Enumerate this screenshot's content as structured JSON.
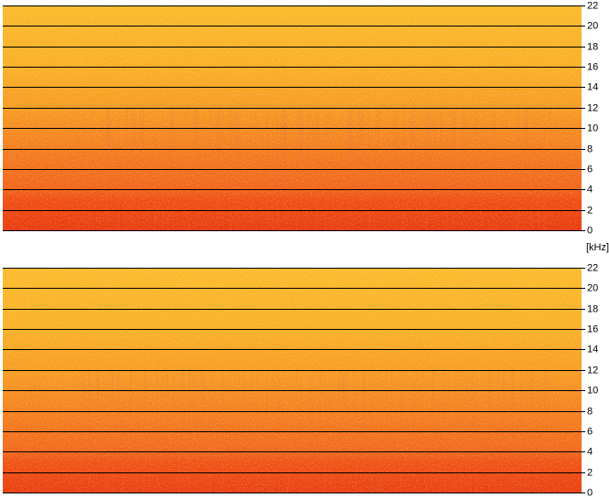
{
  "chart_data": [
    {
      "type": "spectrogram",
      "ylabel": "[kHz]",
      "ylim": [
        0,
        22
      ],
      "yticks": [
        0,
        2,
        4,
        6,
        8,
        10,
        12,
        14,
        16,
        18,
        20,
        22
      ],
      "grid": true,
      "color_stops": [
        {
          "value": 0,
          "color": "#e8380e"
        },
        {
          "value": 3,
          "color": "#f04c12"
        },
        {
          "value": 4,
          "color": "#f2621a"
        },
        {
          "value": 8,
          "color": "#f47c1e"
        },
        {
          "value": 12,
          "color": "#f79a22"
        },
        {
          "value": 16,
          "color": "#f9ae26"
        },
        {
          "value": 22,
          "color": "#fbb92a"
        }
      ]
    },
    {
      "type": "spectrogram",
      "ylim": [
        0,
        22
      ],
      "yticks": [
        0,
        2,
        4,
        6,
        8,
        10,
        12,
        14,
        16,
        18,
        20,
        22
      ],
      "grid": true,
      "color_stops": [
        {
          "value": 0,
          "color": "#ea3c0f"
        },
        {
          "value": 3,
          "color": "#f05013"
        },
        {
          "value": 4,
          "color": "#f2661a"
        },
        {
          "value": 8,
          "color": "#f57f1f"
        },
        {
          "value": 12,
          "color": "#f79c23"
        },
        {
          "value": 16,
          "color": "#f9af27"
        },
        {
          "value": 22,
          "color": "#fbba2b"
        }
      ]
    }
  ]
}
